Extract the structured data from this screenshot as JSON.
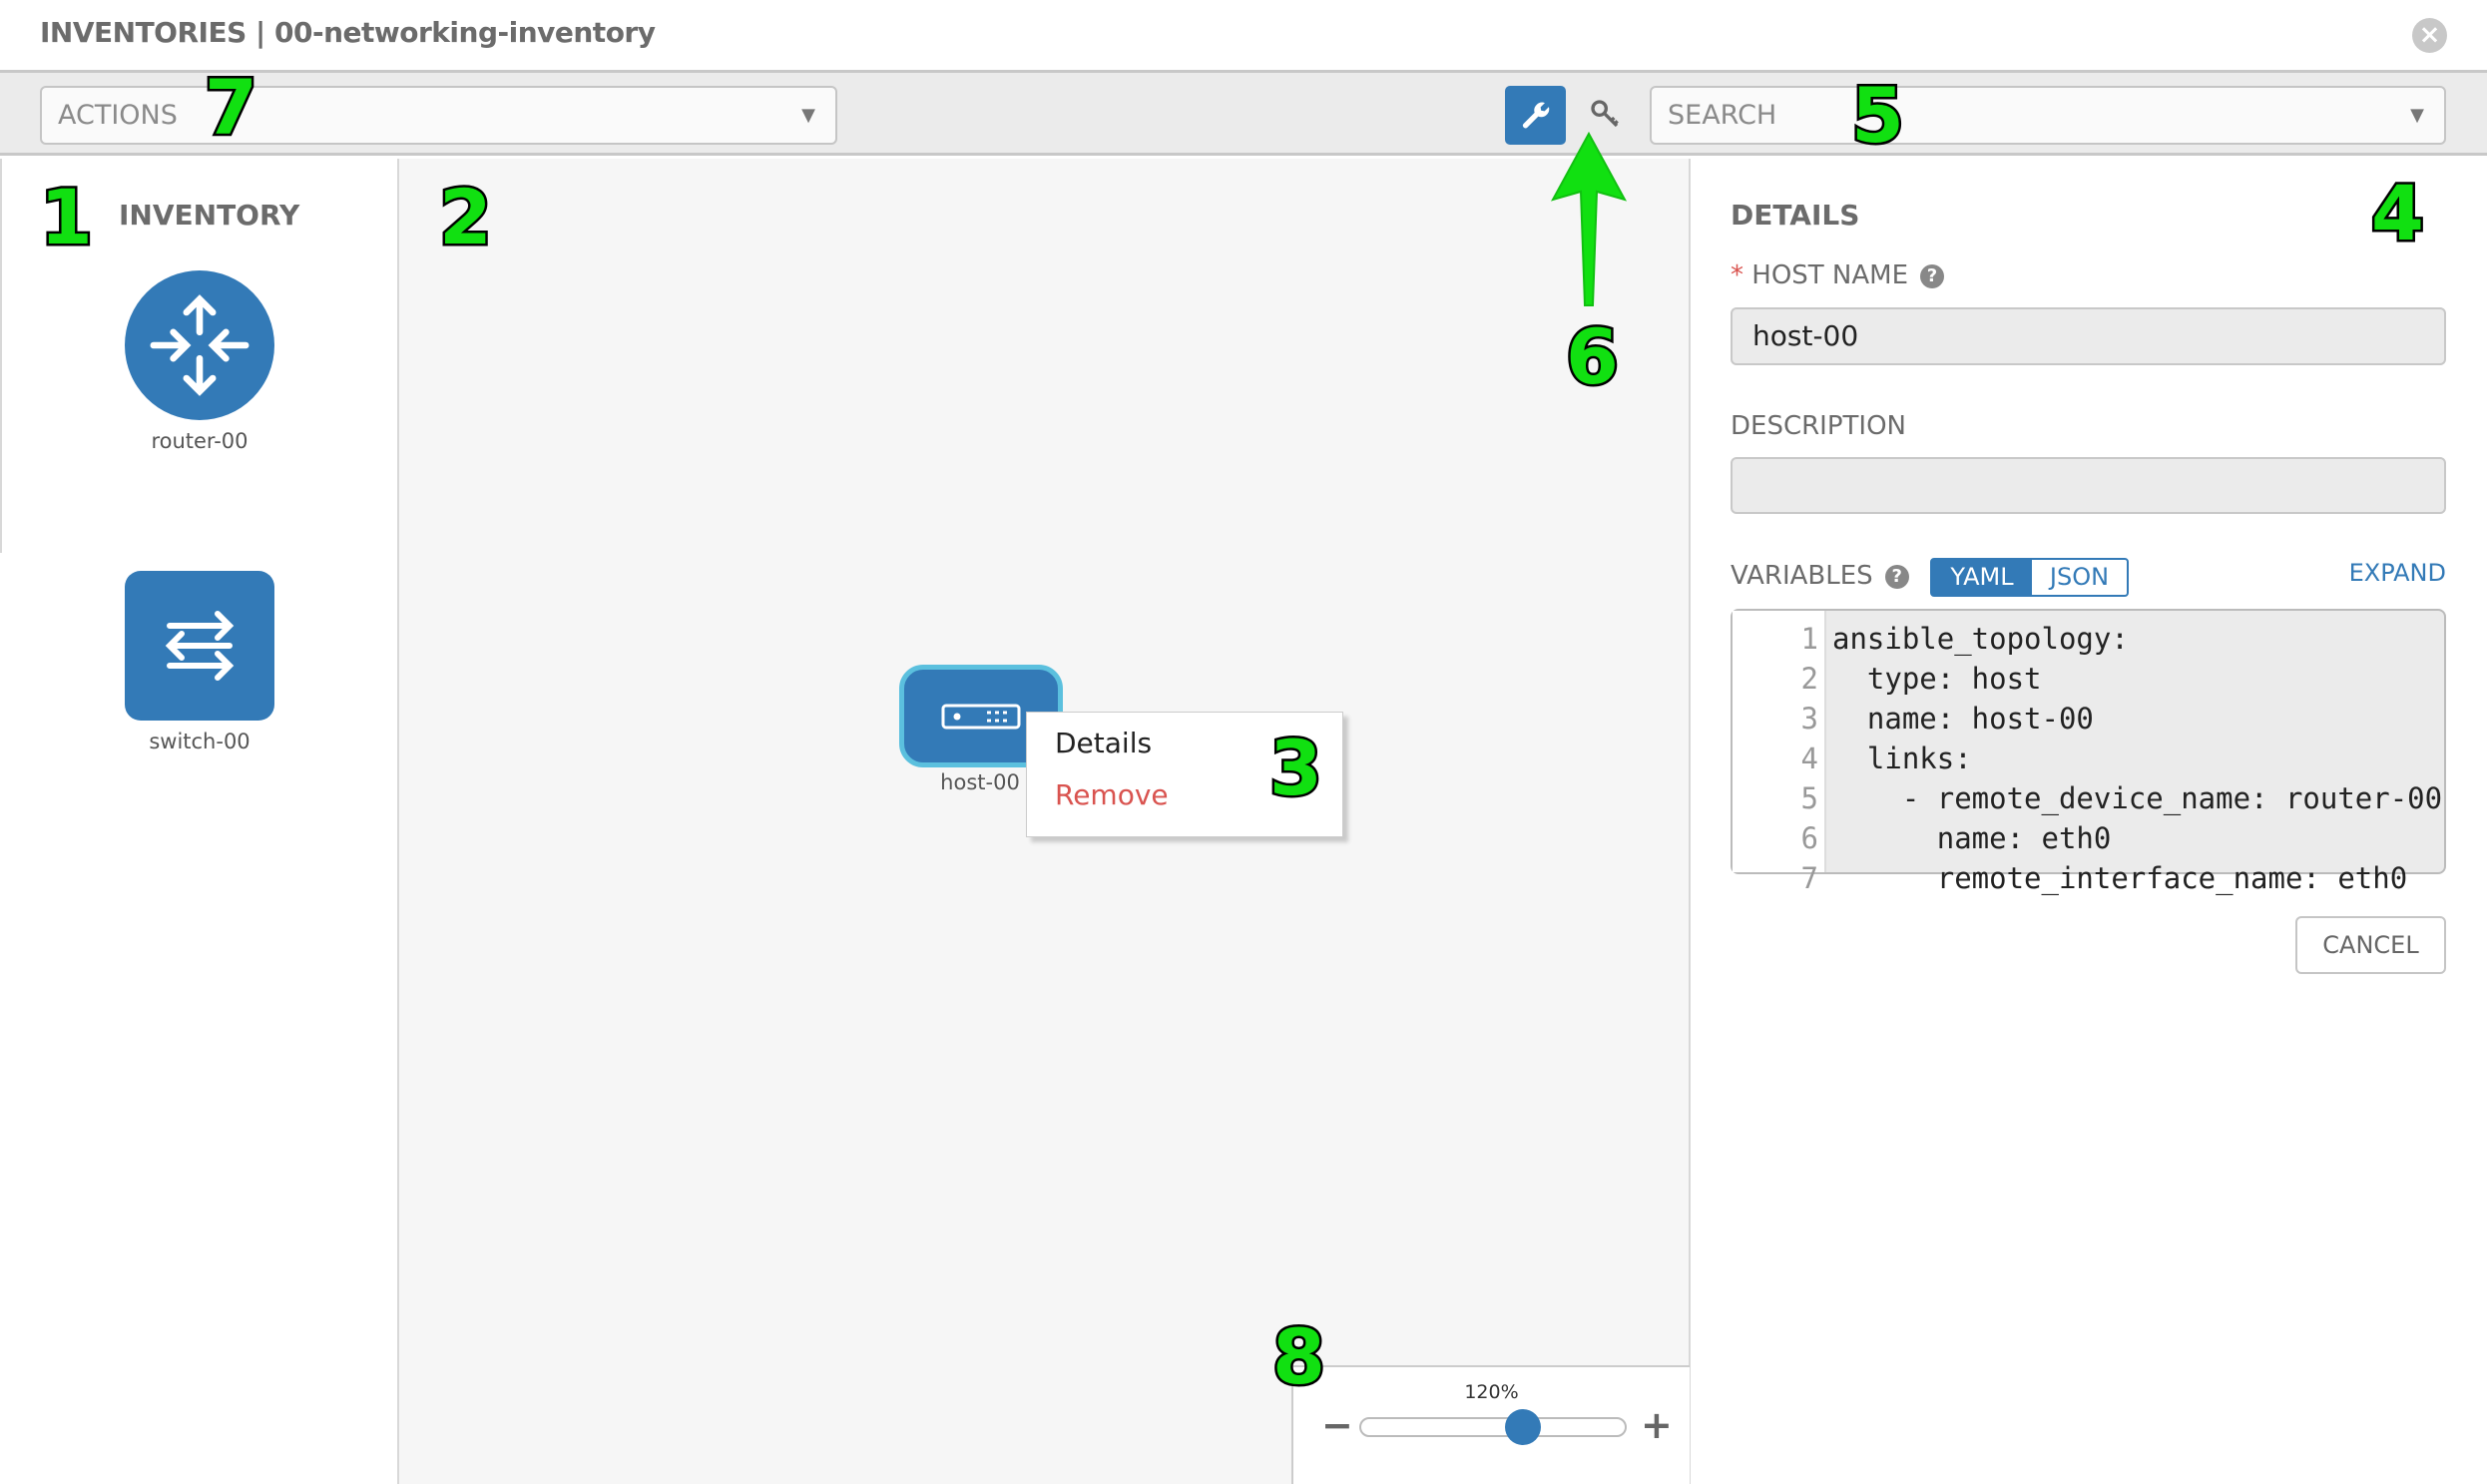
{
  "header": {
    "title": "INVENTORIES | 00-networking-inventory",
    "close_icon": "close-circle-icon"
  },
  "toolbar": {
    "actions_placeholder": "ACTIONS",
    "search_placeholder": "SEARCH",
    "wrench_icon": "wrench-icon",
    "key_icon": "key-icon",
    "accent": "#337ab7"
  },
  "inventory": {
    "title": "INVENTORY",
    "items": [
      {
        "label": "router-00",
        "icon": "router-icon"
      },
      {
        "label": "switch-00",
        "icon": "switch-icon"
      }
    ]
  },
  "canvas": {
    "node": {
      "label": "host-00",
      "icon": "host-icon"
    },
    "context_menu": {
      "items": [
        {
          "label": "Details"
        },
        {
          "label": "Remove",
          "color": "#d9534f"
        }
      ]
    }
  },
  "zoom": {
    "label": "120%",
    "value_percent": 120,
    "minus": "−",
    "plus": "+"
  },
  "details": {
    "title": "DETAILS",
    "required_mark": "*",
    "host_name_label": "HOST NAME",
    "host_name_value": "host-00",
    "description_label": "DESCRIPTION",
    "description_value": "",
    "variables_label": "VARIABLES",
    "yaml": "YAML",
    "json": "JSON",
    "expand": "EXPAND",
    "cancel": "CANCEL",
    "code_lines": [
      {
        "n": "1",
        "t": "ansible_topology:"
      },
      {
        "n": "2",
        "t": "  type: host"
      },
      {
        "n": "3",
        "t": "  name: host-00"
      },
      {
        "n": "4",
        "t": "  links:"
      },
      {
        "n": "5",
        "t": "    - remote_device_name: router-00"
      },
      {
        "n": "6",
        "t": "      name: eth0"
      },
      {
        "n": "7",
        "t": "      remote_interface_name: eth0"
      }
    ]
  },
  "annotations": [
    "1",
    "2",
    "3",
    "4",
    "5",
    "6",
    "7",
    "8"
  ]
}
